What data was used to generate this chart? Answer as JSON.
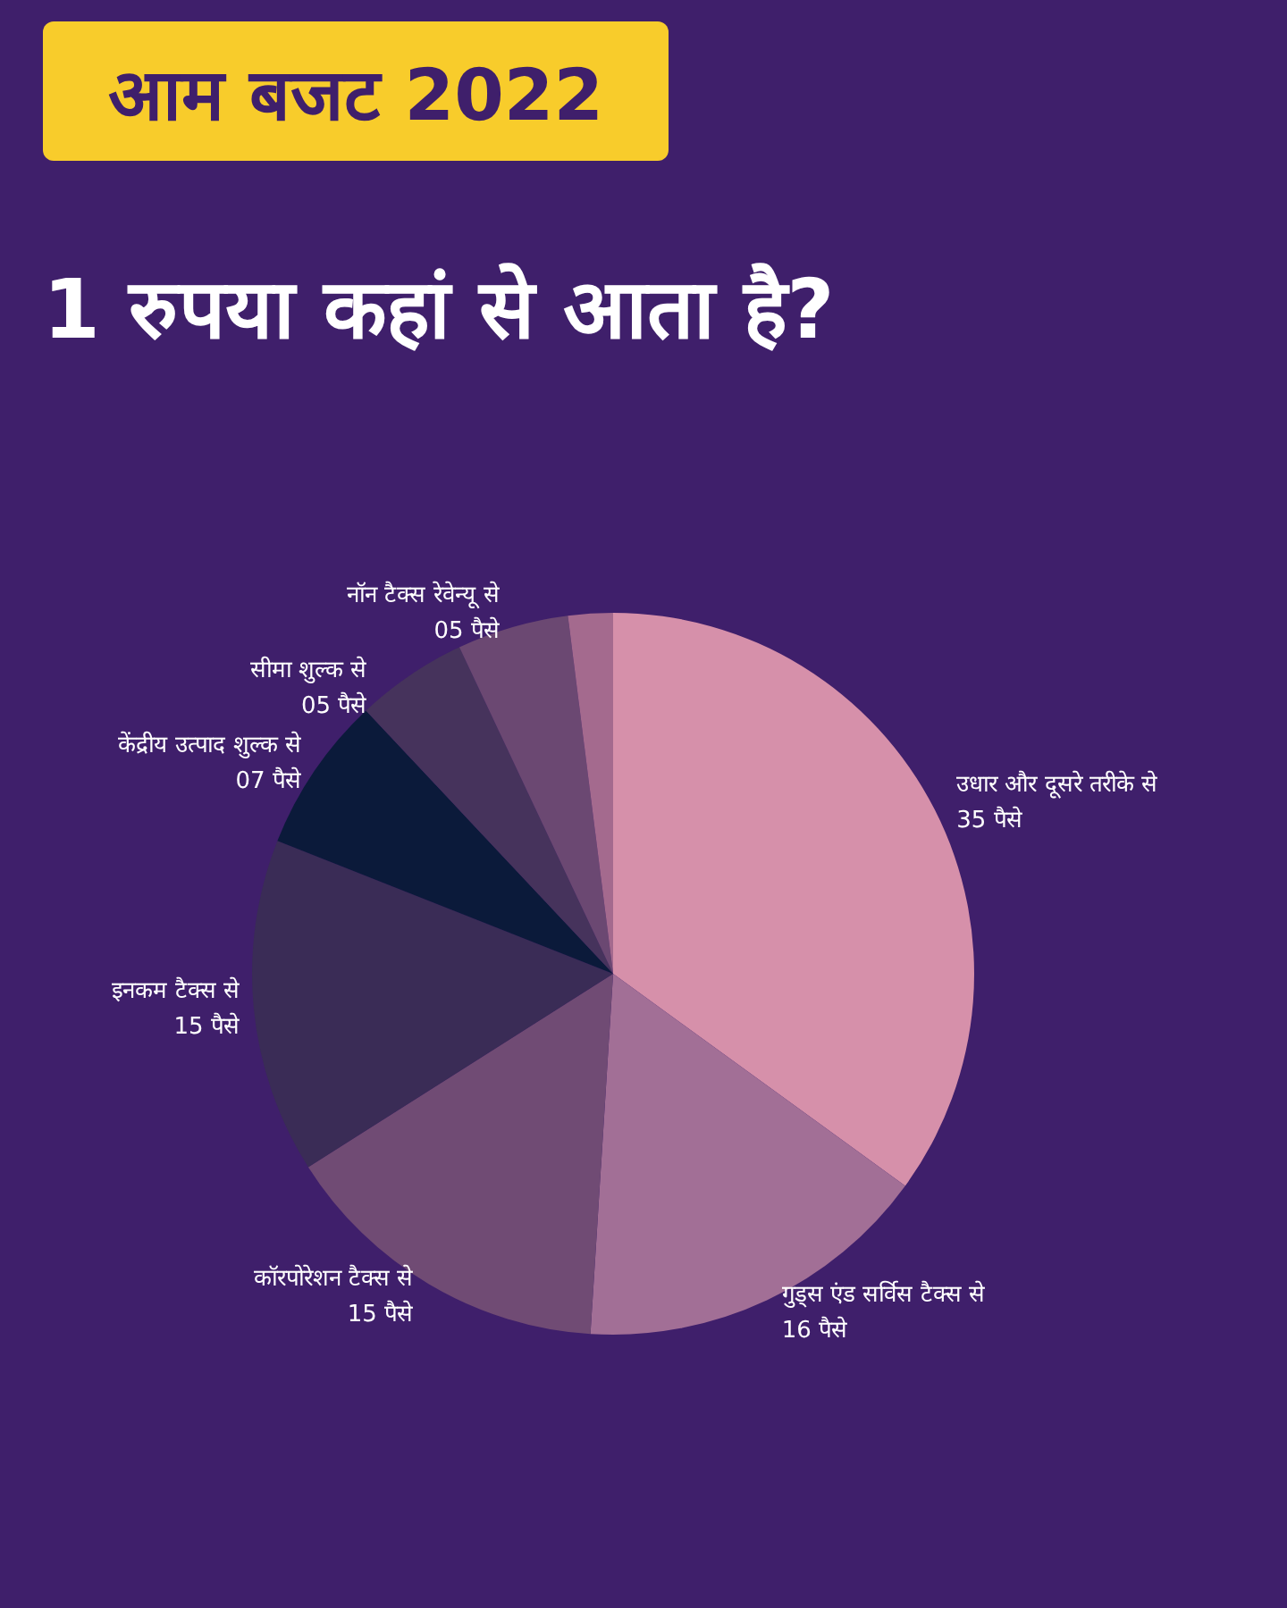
{
  "chart_data": {
    "type": "pie",
    "title": "आम बजट 2022",
    "subtitle": "1 रुपया कहां से आता है?",
    "categories": [
      "उधार और दूसरे तरीके से",
      "गुड्स एंड सर्विस टैक्स से",
      "कॉरपोरेशन टैक्स से",
      "इनकम टैक्स से",
      "केंद्रीय उत्पाद शुल्क से",
      "सीमा शुल्क से",
      "नॉन टैक्स रेवेन्यू से",
      null
    ],
    "values": [
      35,
      16,
      15,
      15,
      7,
      5,
      5,
      2
    ],
    "value_labels": [
      "35 पैसे",
      "16 पैसे",
      "15 पैसे",
      "15 पैसे",
      "07 पैसे",
      "05 पैसे",
      "05 पैसे",
      null
    ],
    "colors": [
      "#d690aa",
      "#a26f96",
      "#704b74",
      "#3a2c56",
      "#0b1a3a",
      "#46335c",
      "#6b4872",
      "#a46a8e"
    ],
    "legend": false
  }
}
